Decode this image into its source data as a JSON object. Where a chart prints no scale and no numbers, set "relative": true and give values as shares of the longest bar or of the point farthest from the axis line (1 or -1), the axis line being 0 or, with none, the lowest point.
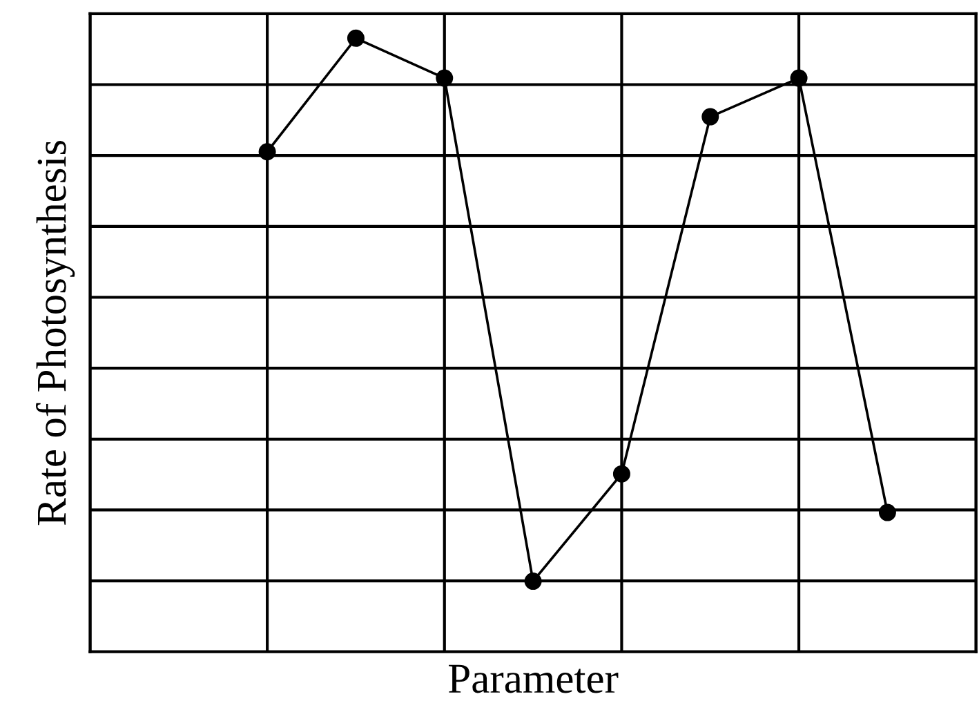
{
  "chart_data": {
    "type": "line",
    "xlabel": "Parameter",
    "ylabel": "Rate of Photosynthesis",
    "relative": true,
    "categories": [
      null,
      null,
      null,
      null,
      null,
      null,
      null,
      null
    ],
    "series": [
      {
        "color": "#000000",
        "values": [
          0.815,
          1,
          0.935,
          0.115,
          0.29,
          0.872,
          0.935,
          0.227
        ]
      }
    ],
    "grid": true,
    "marker": "circle",
    "line_style": "solid",
    "legend": false,
    "tick_labels": false
  }
}
